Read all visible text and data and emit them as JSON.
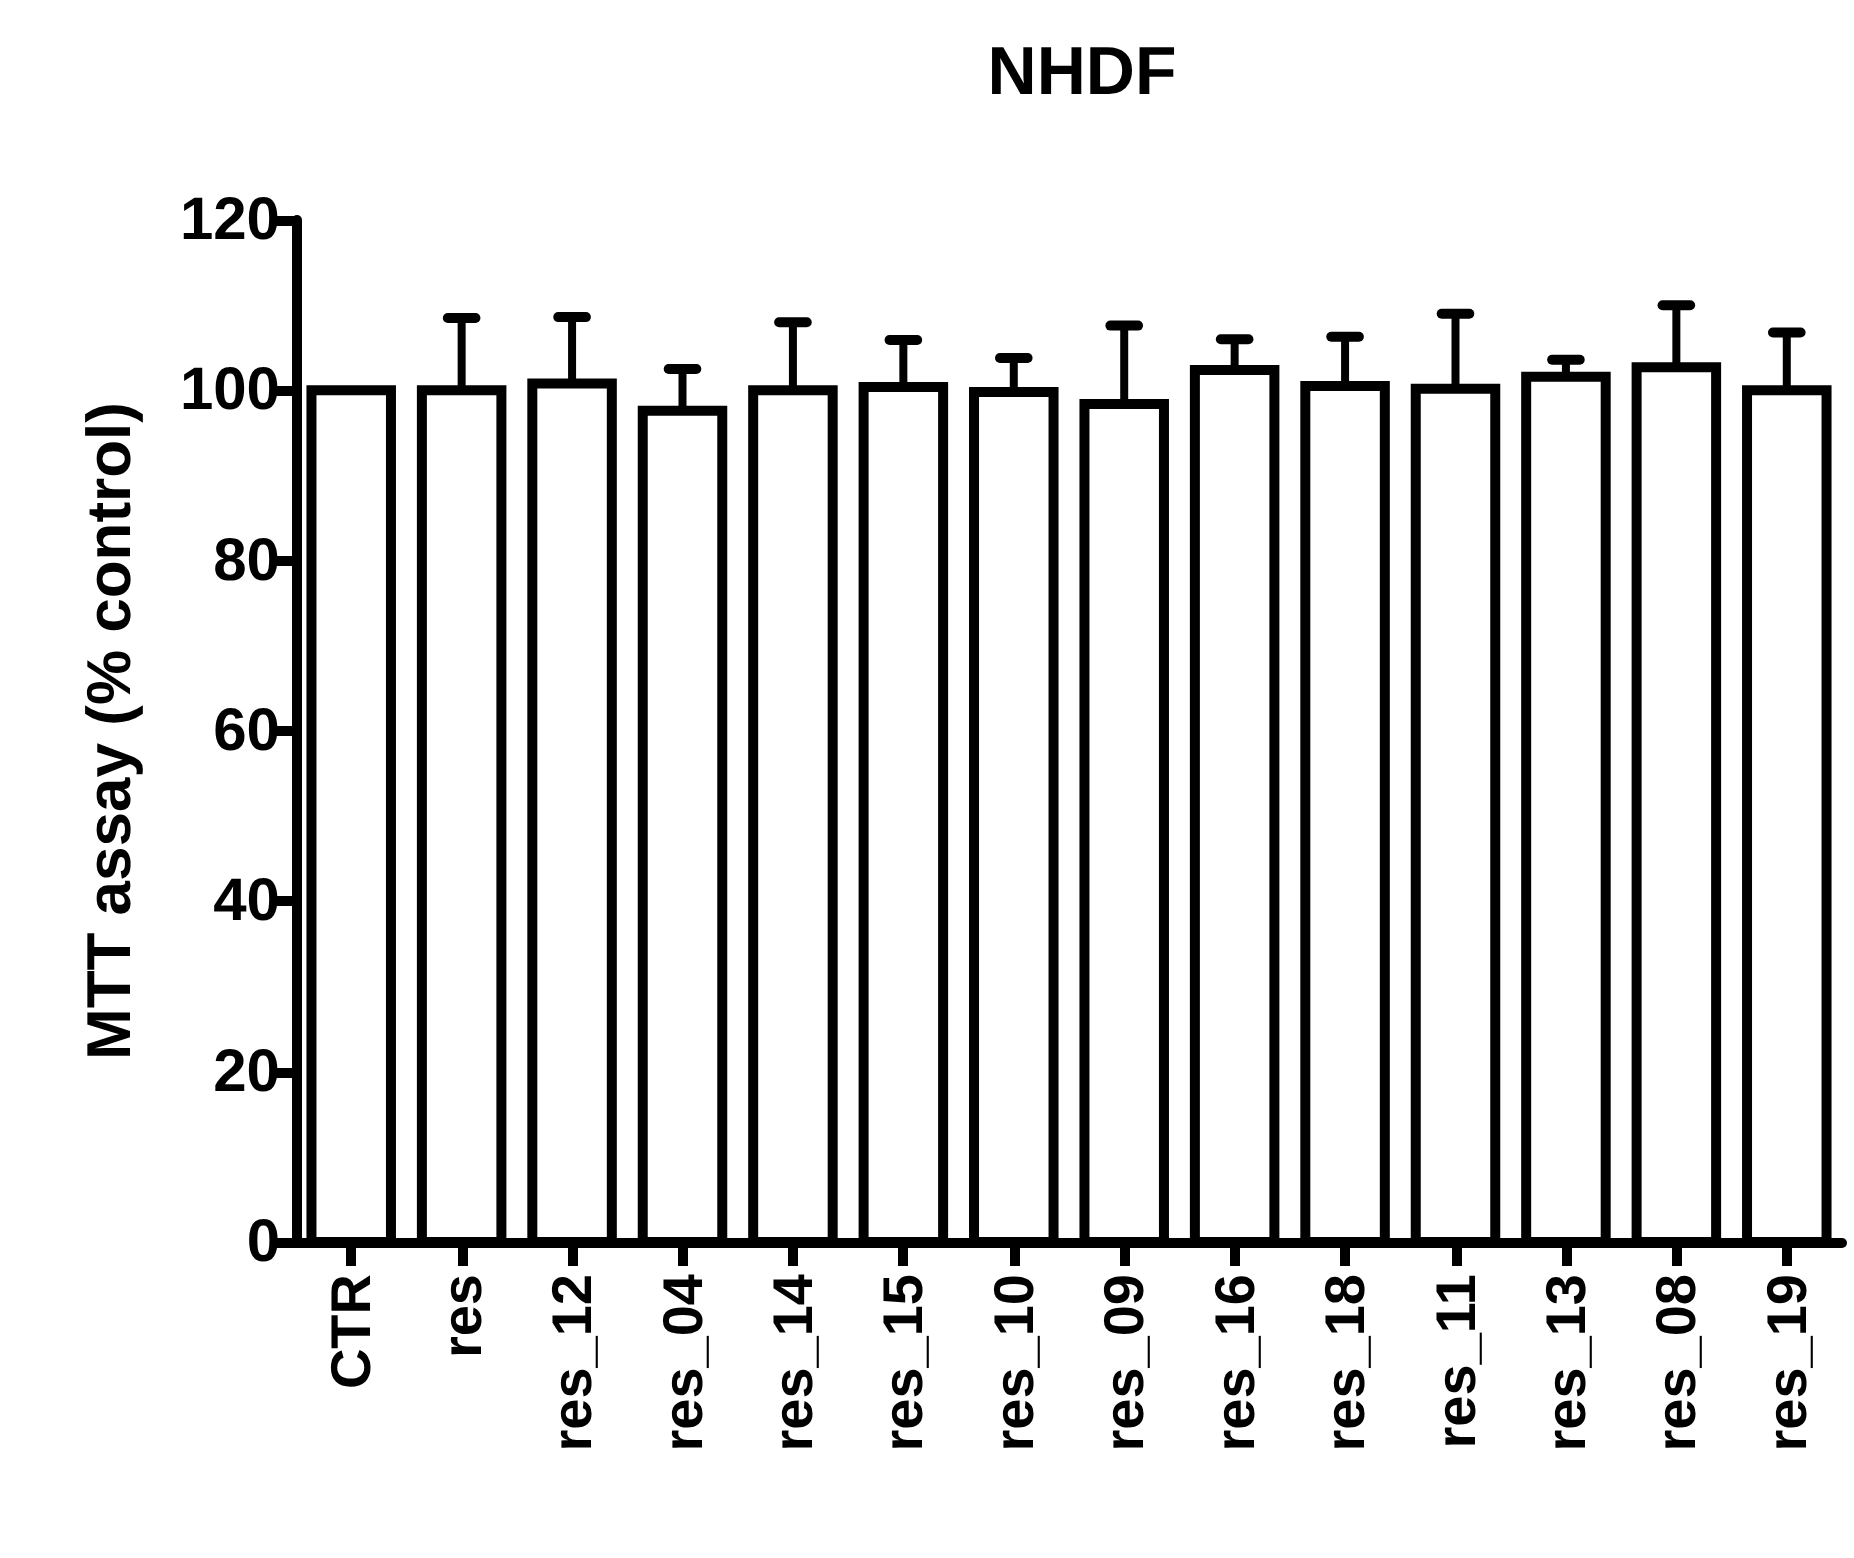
{
  "chart_data": {
    "type": "bar",
    "title": "NHDF",
    "ylabel": "MTT assay (% control)",
    "categories": [
      "CTR",
      "res",
      "res_12",
      "res_04",
      "res_14",
      "res_15",
      "res_10",
      "res_09",
      "res_16",
      "res_18",
      "res_11",
      "res_13",
      "res_08",
      "res_19"
    ],
    "values": [
      100,
      100,
      100.8,
      97.6,
      100,
      100.4,
      99.8,
      98.4,
      102.4,
      100.5,
      100.2,
      101.6,
      102.7,
      100
    ],
    "errors": [
      null,
      [
        100,
        108.5
      ],
      [
        100.8,
        108.6
      ],
      [
        97.6,
        102.5
      ],
      [
        100,
        108
      ],
      [
        100.4,
        105.9
      ],
      [
        99.8,
        103.8
      ],
      [
        98.4,
        107.6
      ],
      [
        102.4,
        106
      ],
      [
        100.5,
        106.3
      ],
      [
        100.2,
        109
      ],
      [
        101.6,
        103.6
      ],
      [
        102.7,
        110
      ],
      [
        100,
        106.8
      ]
    ],
    "color": "#ffffff",
    "ylim": [
      0,
      120
    ],
    "yticks": [
      0,
      20,
      40,
      60,
      80,
      100,
      120
    ],
    "grid": false
  }
}
